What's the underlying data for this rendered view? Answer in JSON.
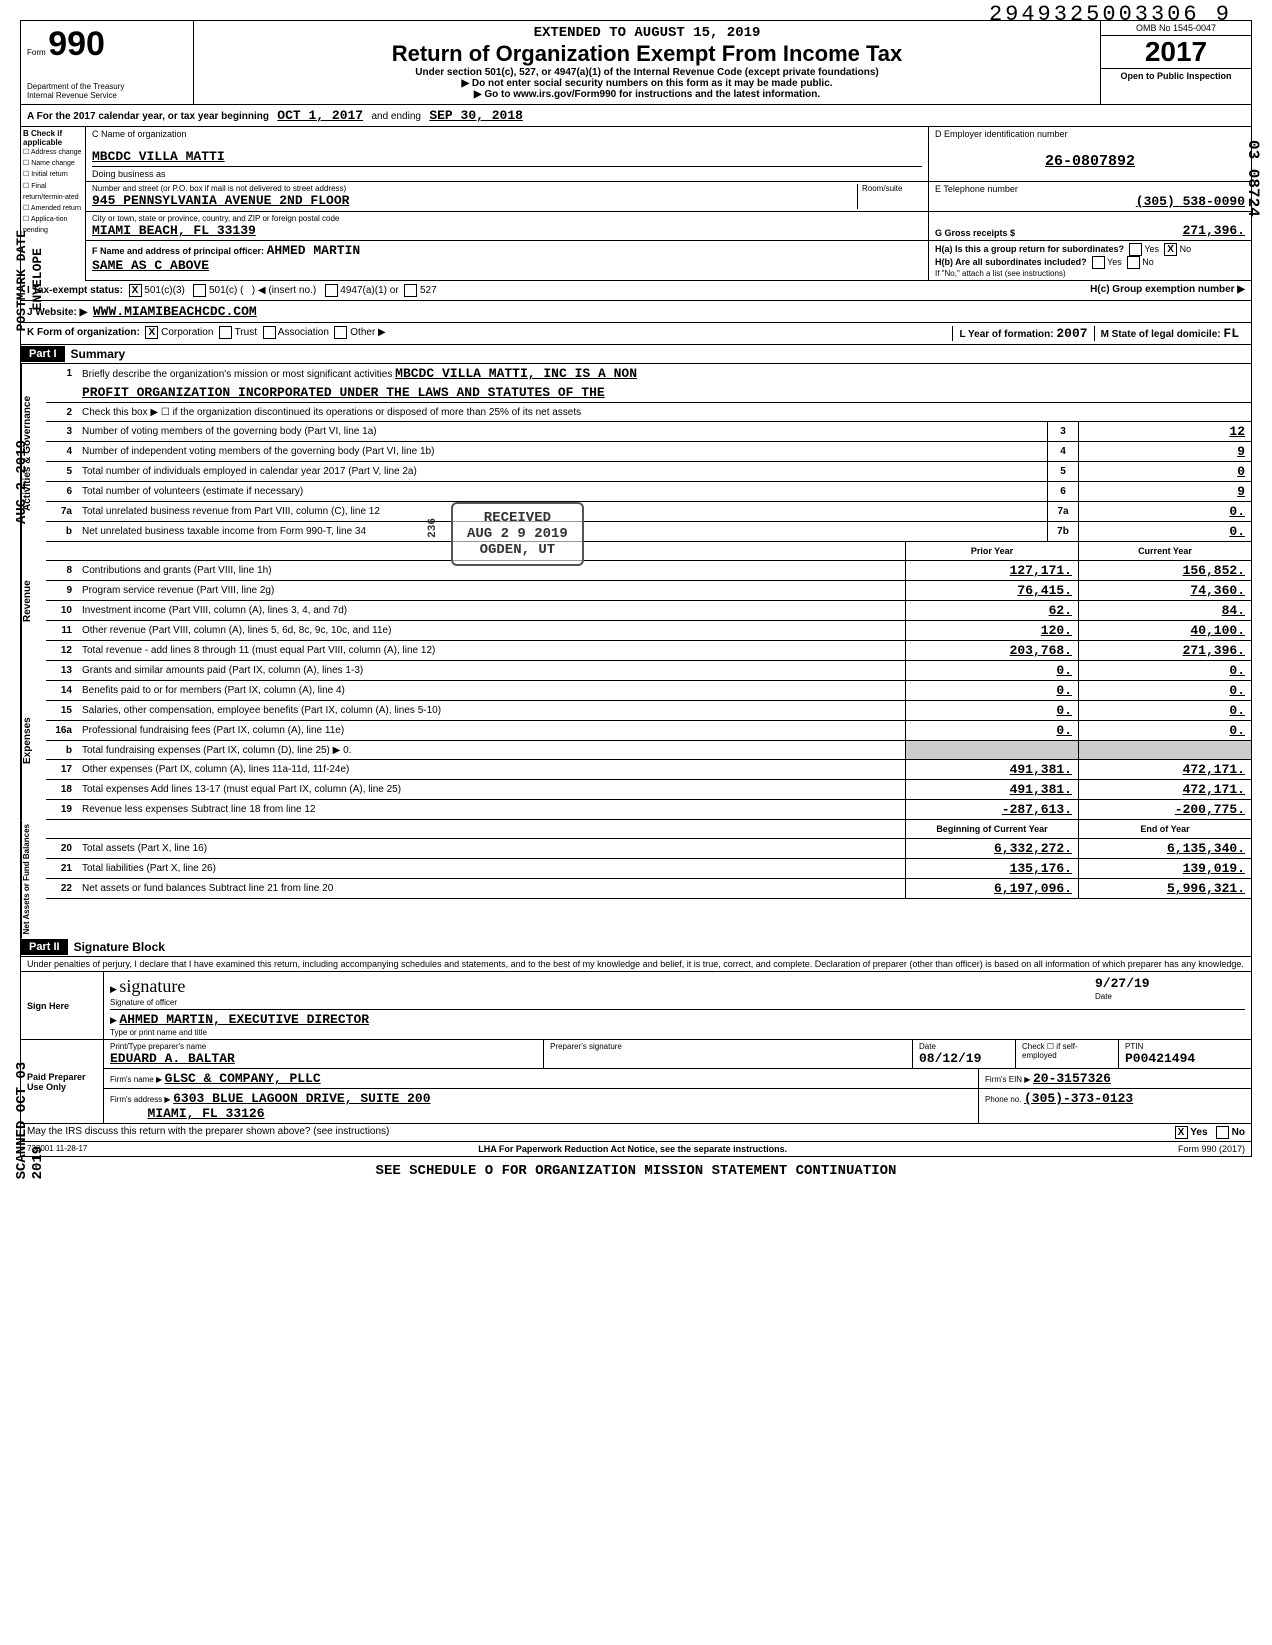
{
  "doc": {
    "top_number": "2949325003306 9",
    "side_postmark": "POSTMARK DATE",
    "side_envelope": "ENVELOPE",
    "side_date": "AUG 2 2019",
    "side_scanned": "SCANNED OCT 03 2019",
    "side_right": "03 08724"
  },
  "header": {
    "form_prefix": "Form",
    "form_no": "990",
    "dept": "Department of the Treasury",
    "irs": "Internal Revenue Service",
    "extended": "EXTENDED TO AUGUST 15, 2019",
    "title": "Return of Organization Exempt From Income Tax",
    "sub": "Under section 501(c), 527, or 4947(a)(1) of the Internal Revenue Code (except private foundations)",
    "arrow1": "▶ Do not enter social security numbers on this form as it may be made public.",
    "arrow2": "▶ Go to www.irs.gov/Form990 for instructions and the latest information.",
    "omb": "OMB No 1545-0047",
    "year": "2017",
    "open": "Open to Public Inspection"
  },
  "A": {
    "text": "A For the 2017 calendar year, or tax year beginning",
    "begin": "OCT 1, 2017",
    "mid": "and ending",
    "end": "SEP 30, 2018"
  },
  "B": {
    "label": "B Check if applicable",
    "items": [
      "Address change",
      "Name change",
      "Initial return",
      "Final return/termin-ated",
      "Amended return",
      "Applica-tion pending"
    ]
  },
  "C": {
    "name_label": "C Name of organization",
    "name": "MBCDC VILLA MATTI",
    "dba_label": "Doing business as",
    "street_label": "Number and street (or P.O. box if mail is not delivered to street address)",
    "room_label": "Room/suite",
    "street": "945 PENNSYLVANIA AVENUE 2ND FLOOR",
    "city_label": "City or town, state or province, country, and ZIP or foreign postal code",
    "city": "MIAMI BEACH, FL  33139",
    "F_label": "F Name and address of principal officer:",
    "F_name": "AHMED MARTIN",
    "F_addr": "SAME AS C ABOVE"
  },
  "D": {
    "label": "D Employer identification number",
    "ein": "26-0807892"
  },
  "E": {
    "label": "E Telephone number",
    "phone": "(305) 538-0090"
  },
  "G": {
    "label": "G Gross receipts $",
    "val": "271,396."
  },
  "H": {
    "a_label": "H(a) Is this a group return for subordinates?",
    "a_yes": "Yes",
    "a_no": "No",
    "b_label": "H(b) Are all subordinates included?",
    "b_yes": "Yes",
    "b_no": "No",
    "b_note": "If \"No,\" attach a list (see instructions)",
    "c_label": "H(c) Group exemption number ▶"
  },
  "I": {
    "label": "I Tax-exempt status:",
    "opt1": "501(c)(3)",
    "opt2": "501(c) (",
    "insert": "◀ (insert no.)",
    "opt3": "4947(a)(1) or",
    "opt4": "527"
  },
  "J": {
    "label": "J Website: ▶",
    "val": "WWW.MIAMIBEACHCDC.COM"
  },
  "K": {
    "label": "K Form of organization:",
    "corp": "Corporation",
    "trust": "Trust",
    "assoc": "Association",
    "other": "Other ▶"
  },
  "L": {
    "label": "L Year of formation:",
    "val": "2007"
  },
  "M": {
    "label": "M State of legal domicile:",
    "val": "FL"
  },
  "partI": {
    "title": "Part I",
    "sub": "Summary",
    "line1_label": "Briefly describe the organization's mission or most significant activities",
    "line1_val": "MBCDC VILLA MATTI, INC IS A NON",
    "line1b_val": "PROFIT ORGANIZATION INCORPORATED UNDER THE LAWS AND STATUTES OF THE",
    "line2": "Check this box ▶ ☐ if the organization discontinued its operations or disposed of more than 25% of its net assets",
    "rows_gov": [
      {
        "n": "3",
        "t": "Number of voting members of the governing body (Part VI, line 1a)",
        "b": "3",
        "v": "12"
      },
      {
        "n": "4",
        "t": "Number of independent voting members of the governing body (Part VI, line 1b)",
        "b": "4",
        "v": "9"
      },
      {
        "n": "5",
        "t": "Total number of individuals employed in calendar year 2017 (Part V, line 2a)",
        "b": "5",
        "v": "0"
      },
      {
        "n": "6",
        "t": "Total number of volunteers (estimate if necessary)",
        "b": "6",
        "v": "9"
      },
      {
        "n": "7a",
        "t": "Total unrelated business revenue from Part VIII, column (C), line 12",
        "b": "7a",
        "v": "0."
      },
      {
        "n": "b",
        "t": "Net unrelated business taxable income from Form 990-T, line 34",
        "b": "7b",
        "v": "0."
      }
    ],
    "hdr_prior": "Prior Year",
    "hdr_current": "Current Year",
    "rows_rev": [
      {
        "n": "8",
        "t": "Contributions and grants (Part VIII, line 1h)",
        "p": "127,171.",
        "c": "156,852."
      },
      {
        "n": "9",
        "t": "Program service revenue (Part VIII, line 2g)",
        "p": "76,415.",
        "c": "74,360."
      },
      {
        "n": "10",
        "t": "Investment income (Part VIII, column (A), lines 3, 4, and 7d)",
        "p": "62.",
        "c": "84."
      },
      {
        "n": "11",
        "t": "Other revenue (Part VIII, column (A), lines 5, 6d, 8c, 9c, 10c, and 11e)",
        "p": "120.",
        "c": "40,100."
      },
      {
        "n": "12",
        "t": "Total revenue - add lines 8 through 11 (must equal Part VIII, column (A), line 12)",
        "p": "203,768.",
        "c": "271,396."
      }
    ],
    "rows_exp": [
      {
        "n": "13",
        "t": "Grants and similar amounts paid (Part IX, column (A), lines 1-3)",
        "p": "0.",
        "c": "0."
      },
      {
        "n": "14",
        "t": "Benefits paid to or for members (Part IX, column (A), line 4)",
        "p": "0.",
        "c": "0."
      },
      {
        "n": "15",
        "t": "Salaries, other compensation, employee benefits (Part IX, column (A), lines 5-10)",
        "p": "0.",
        "c": "0."
      },
      {
        "n": "16a",
        "t": "Professional fundraising fees (Part IX, column (A), line 11e)",
        "p": "0.",
        "c": "0."
      },
      {
        "n": "b",
        "t": "Total fundraising expenses (Part IX, column (D), line 25) ▶           0.",
        "p": "",
        "c": ""
      },
      {
        "n": "17",
        "t": "Other expenses (Part IX, column (A), lines 11a-11d, 11f-24e)",
        "p": "491,381.",
        "c": "472,171."
      },
      {
        "n": "18",
        "t": "Total expenses Add lines 13-17 (must equal Part IX, column (A), line 25)",
        "p": "491,381.",
        "c": "472,171."
      },
      {
        "n": "19",
        "t": "Revenue less expenses Subtract line 18 from line 12",
        "p": "-287,613.",
        "c": "-200,775."
      }
    ],
    "hdr_begin": "Beginning of Current Year",
    "hdr_end": "End of Year",
    "rows_net": [
      {
        "n": "20",
        "t": "Total assets (Part X, line 16)",
        "p": "6,332,272.",
        "c": "6,135,340."
      },
      {
        "n": "21",
        "t": "Total liabilities (Part X, line 26)",
        "p": "135,176.",
        "c": "139,019."
      },
      {
        "n": "22",
        "t": "Net assets or fund balances Subtract line 21 from line 20",
        "p": "6,197,096.",
        "c": "5,996,321."
      }
    ],
    "side_gov": "Activities & Governance",
    "side_rev": "Revenue",
    "side_exp": "Expenses",
    "side_net": "Net Assets or Fund Balances"
  },
  "partII": {
    "title": "Part II",
    "sub": "Signature Block",
    "decl": "Under penalties of perjury, I declare that I have examined this return, including accompanying schedules and statements, and to the best of my knowledge and belief, it is true, correct, and complete. Declaration of preparer (other than officer) is based on all information of which preparer has any knowledge.",
    "sign_here": "Sign Here",
    "sig_label": "Signature of officer",
    "date_label": "Date",
    "sig_date": "9/27/19",
    "name_label": "Type or print name and title",
    "name_val": "AHMED MARTIN, EXECUTIVE DIRECTOR",
    "paid": "Paid Preparer Use Only",
    "prep_name_label": "Print/Type preparer's name",
    "prep_name": "EDUARD A. BALTAR",
    "prep_sig_label": "Preparer's signature",
    "prep_date_label": "Date",
    "prep_date": "08/12/19",
    "check_label": "Check ☐ if self-employed",
    "ptin_label": "PTIN",
    "ptin": "P00421494",
    "firm_name_label": "Firm's name ▶",
    "firm_name": "GLSC & COMPANY, PLLC",
    "firm_ein_label": "Firm's EIN ▶",
    "firm_ein": "20-3157326",
    "firm_addr_label": "Firm's address ▶",
    "firm_addr": "6303 BLUE LAGOON DRIVE, SUITE 200",
    "firm_city": "MIAMI, FL 33126",
    "phone_label": "Phone no.",
    "phone": "(305)-373-0123",
    "discuss": "May the IRS discuss this return with the preparer shown above? (see instructions)",
    "discuss_yes": "Yes",
    "discuss_no": "No"
  },
  "footer": {
    "code": "732001 11-28-17",
    "lha": "LHA For Paperwork Reduction Act Notice, see the separate instructions.",
    "form": "Form 990 (2017)",
    "see": "SEE SCHEDULE O FOR ORGANIZATION MISSION STATEMENT CONTINUATION"
  },
  "stamp": {
    "received": "RECEIVED",
    "date": "AUG 2 9 2019",
    "loc": "OGDEN, UT",
    "num": "236"
  }
}
